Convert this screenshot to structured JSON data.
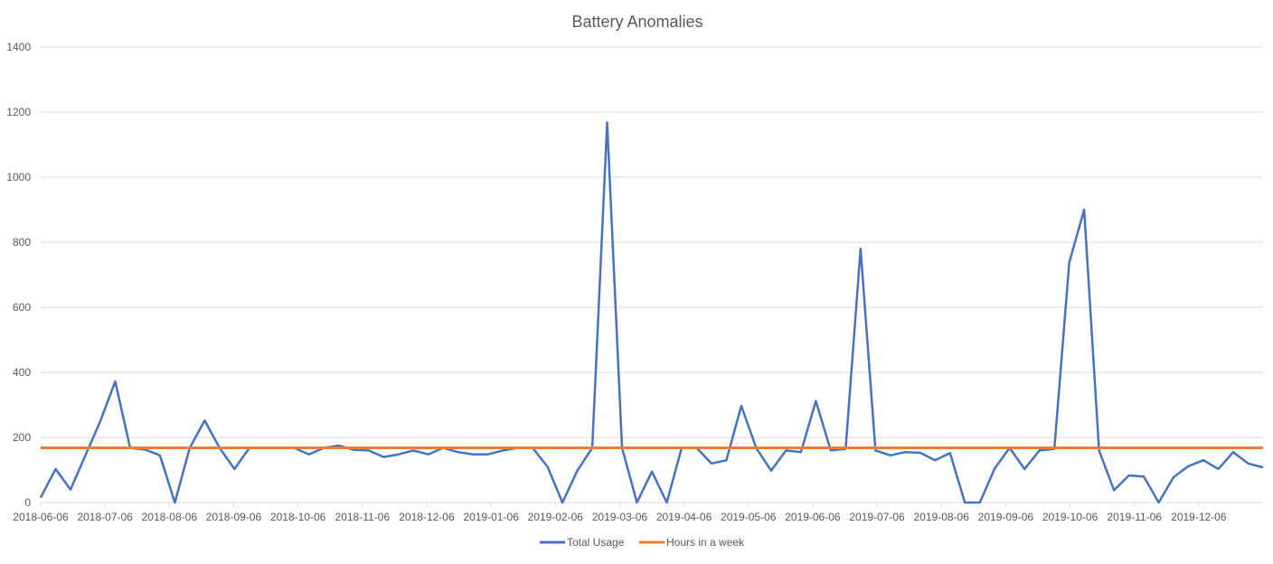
{
  "chart_data": {
    "type": "line",
    "title": "Battery Anomalies",
    "xlabel": "",
    "ylabel": "",
    "ylim": [
      0,
      1400
    ],
    "yticks": [
      0,
      200,
      400,
      600,
      800,
      1000,
      1200,
      1400
    ],
    "grid": true,
    "legend_position": "bottom",
    "xtick_labels": [
      "2018-06-06",
      "2018-07-06",
      "2018-08-06",
      "2018-09-06",
      "2018-10-06",
      "2018-11-06",
      "2018-12-06",
      "2019-01-06",
      "2019-02-06",
      "2019-03-06",
      "2019-04-06",
      "2019-05-06",
      "2019-06-06",
      "2019-07-06",
      "2019-08-06",
      "2019-09-06",
      "2019-10-06",
      "2019-11-06",
      "2019-12-06"
    ],
    "series": [
      {
        "name": "Total Usage",
        "color": "#4472C4",
        "values": [
          15,
          103,
          40,
          145,
          250,
          372,
          168,
          163,
          145,
          0,
          168,
          252,
          168,
          103,
          168,
          168,
          168,
          168,
          148,
          168,
          175,
          162,
          160,
          140,
          148,
          160,
          148,
          168,
          155,
          148,
          148,
          160,
          168,
          168,
          110,
          0,
          98,
          168,
          1168,
          168,
          0,
          95,
          0,
          168,
          168,
          120,
          130,
          297,
          168,
          98,
          160,
          155,
          312,
          160,
          165,
          780,
          160,
          145,
          155,
          153,
          130,
          152,
          0,
          0,
          105,
          168,
          103,
          160,
          165,
          738,
          900,
          160,
          38,
          83,
          80,
          0,
          78,
          112,
          130,
          103,
          155,
          120,
          108
        ]
      },
      {
        "name": "Hours in a week",
        "color": "#ED7D31",
        "values": [
          168,
          168,
          168,
          168,
          168,
          168,
          168,
          168,
          168,
          168,
          168,
          168,
          168,
          168,
          168,
          168,
          168,
          168,
          168,
          168,
          168,
          168,
          168,
          168,
          168,
          168,
          168,
          168,
          168,
          168,
          168,
          168,
          168,
          168,
          168,
          168,
          168,
          168,
          168,
          168,
          168,
          168,
          168,
          168,
          168,
          168,
          168,
          168,
          168,
          168,
          168,
          168,
          168,
          168,
          168,
          168,
          168,
          168,
          168,
          168,
          168,
          168,
          168,
          168,
          168,
          168,
          168,
          168,
          168,
          168,
          168,
          168,
          168,
          168,
          168,
          168,
          168,
          168,
          168,
          168,
          168,
          168,
          168
        ]
      }
    ]
  }
}
